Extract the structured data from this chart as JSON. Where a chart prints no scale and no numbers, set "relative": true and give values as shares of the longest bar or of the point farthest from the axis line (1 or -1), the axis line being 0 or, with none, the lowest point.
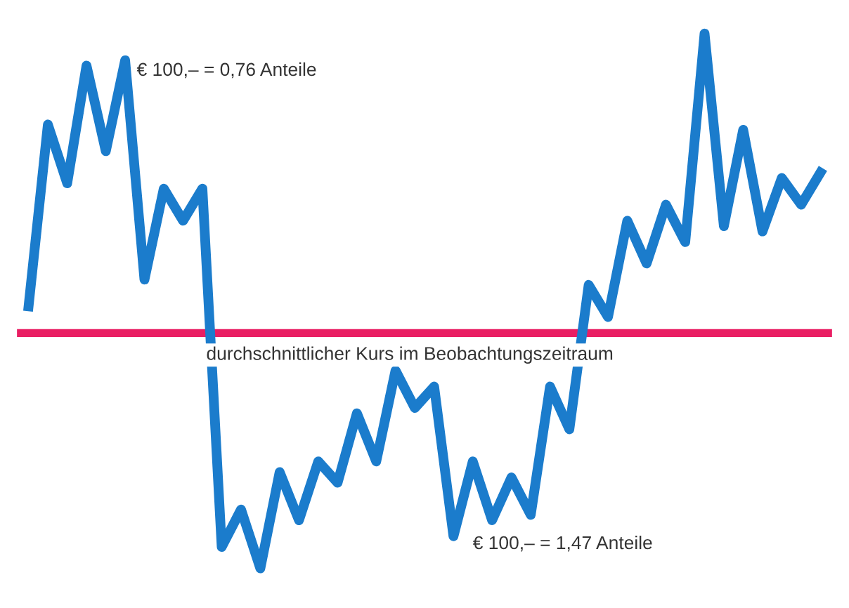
{
  "chart_data": {
    "type": "line",
    "relative": true,
    "categories": [
      null,
      null,
      null,
      null,
      null,
      null,
      null,
      null,
      null,
      null,
      null,
      null,
      null,
      null,
      null,
      null,
      null,
      null,
      null,
      null,
      null,
      null,
      null,
      null,
      null,
      null,
      null,
      null,
      null,
      null,
      null,
      null,
      null,
      null,
      null,
      null,
      null,
      null,
      null,
      null,
      null,
      null
    ],
    "series": [
      {
        "color": "#1b7ccc",
        "values": [
          0.49,
          0.83,
          0.72,
          0.94,
          0.78,
          0.95,
          0.54,
          0.71,
          0.65,
          0.71,
          0.04,
          0.11,
          0,
          0.18,
          0.09,
          0.2,
          0.16,
          0.29,
          0.2,
          0.37,
          0.3,
          0.34,
          0.06,
          0.2,
          0.09,
          0.17,
          0.1,
          0.34,
          0.26,
          0.53,
          0.47,
          0.65,
          0.57,
          0.68,
          0.61,
          1,
          0.64,
          0.82,
          0.63,
          0.73,
          0.68,
          0.74
        ]
      }
    ],
    "ref_lines": [
      {
        "axis": "y",
        "value": 0.44,
        "label": "durchschnittlicher Kurs im Beobachtungszeitraum",
        "color": "#e91e63"
      }
    ],
    "annotations": [
      "€ 100,– = 0,76 Anteile",
      "€ 100,– = 1,47 Anteile"
    ],
    "legend": false,
    "marker": "none",
    "line_style": "solid"
  }
}
